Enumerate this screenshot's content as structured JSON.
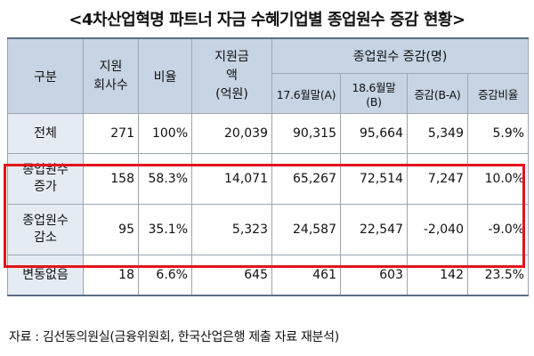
{
  "title": "<4차산업혁명 파트너 자금 수혜기업별 종업원수 증감 현황>",
  "table": {
    "headers": {
      "category": "구분",
      "companies_line1": "지원",
      "companies_line2": "회사수",
      "ratio": "비율",
      "amount_line1": "지원금",
      "amount_line2": "액",
      "amount_line3": "(억원)",
      "employee_group": "종업원수 증감(명)",
      "sub": [
        "17.6월말(A)",
        "18.6월말(B)",
        "증감(B-A)",
        "증감비율"
      ]
    },
    "rows": [
      {
        "label1": "전체",
        "label2": "",
        "companies": "271",
        "ratio": "100%",
        "amount": "20,039",
        "a": "90,315",
        "b": "95,664",
        "diff": "5,349",
        "rate": "5.9%"
      },
      {
        "label1": "종업원수",
        "label2": "증가",
        "companies": "158",
        "ratio": "58.3%",
        "amount": "14,071",
        "a": "65,267",
        "b": "72,514",
        "diff": "7,247",
        "rate": "10.0%"
      },
      {
        "label1": "종업원수",
        "label2": "감소",
        "companies": "95",
        "ratio": "35.1%",
        "amount": "5,323",
        "a": "24,587",
        "b": "22,547",
        "diff": "-2,040",
        "rate": "-9.0%"
      },
      {
        "label1": "변동없음",
        "label2": "",
        "companies": "18",
        "ratio": "6.6%",
        "amount": "645",
        "a": "461",
        "b": "603",
        "diff": "142",
        "rate": "23.5%"
      }
    ]
  },
  "highlight_color": "#e3141e",
  "header_color": "#c6d4e3",
  "source": "자료 : 김선동의원실(금융위원회, 한국산업은행 제출 자료 재분석)"
}
